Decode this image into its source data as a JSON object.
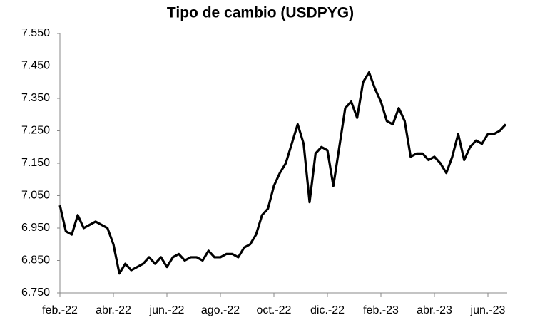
{
  "chart_data": {
    "type": "line",
    "title": "Tipo de cambio (USDPYG)",
    "categories": [
      "feb.-22",
      null,
      null,
      null,
      null,
      null,
      null,
      null,
      null,
      "abr.-22",
      null,
      null,
      null,
      null,
      null,
      null,
      null,
      null,
      "jun.-22",
      null,
      null,
      null,
      null,
      null,
      null,
      null,
      null,
      "ago.-22",
      null,
      null,
      null,
      null,
      null,
      null,
      null,
      null,
      "oct.-22",
      null,
      null,
      null,
      null,
      null,
      null,
      null,
      null,
      "dic.-22",
      null,
      null,
      null,
      null,
      null,
      null,
      null,
      null,
      "feb.-23",
      null,
      null,
      null,
      null,
      null,
      null,
      null,
      null,
      "abr.-23",
      null,
      null,
      null,
      null,
      null,
      null,
      null,
      null,
      "jun.-23",
      null,
      null,
      null
    ],
    "values": [
      7020,
      6940,
      6930,
      6990,
      6950,
      6960,
      6970,
      6960,
      6950,
      6900,
      6810,
      6840,
      6820,
      6830,
      6840,
      6860,
      6840,
      6860,
      6830,
      6860,
      6870,
      6850,
      6860,
      6860,
      6850,
      6880,
      6860,
      6860,
      6870,
      6870,
      6860,
      6890,
      6900,
      6930,
      6990,
      7010,
      7080,
      7120,
      7150,
      7210,
      7270,
      7210,
      7030,
      7180,
      7200,
      7190,
      7080,
      7200,
      7320,
      7340,
      7290,
      7400,
      7430,
      7380,
      7340,
      7280,
      7270,
      7320,
      7280,
      7170,
      7180,
      7180,
      7160,
      7170,
      7150,
      7120,
      7170,
      7240,
      7160,
      7200,
      7220,
      7210,
      7240,
      7240,
      7250,
      7270
    ],
    "color": "#000000",
    "ylim": [
      6750,
      7550
    ],
    "yticks": [
      {
        "value": 6750,
        "label": "6.750"
      },
      {
        "value": 6850,
        "label": "6.850"
      },
      {
        "value": 6950,
        "label": "6.950"
      },
      {
        "value": 7050,
        "label": "7.050"
      },
      {
        "value": 7150,
        "label": "7.150"
      },
      {
        "value": 7250,
        "label": "7.250"
      },
      {
        "value": 7350,
        "label": "7.350"
      },
      {
        "value": 7450,
        "label": "7.450"
      },
      {
        "value": 7550,
        "label": "7.550"
      }
    ],
    "grid": false
  }
}
